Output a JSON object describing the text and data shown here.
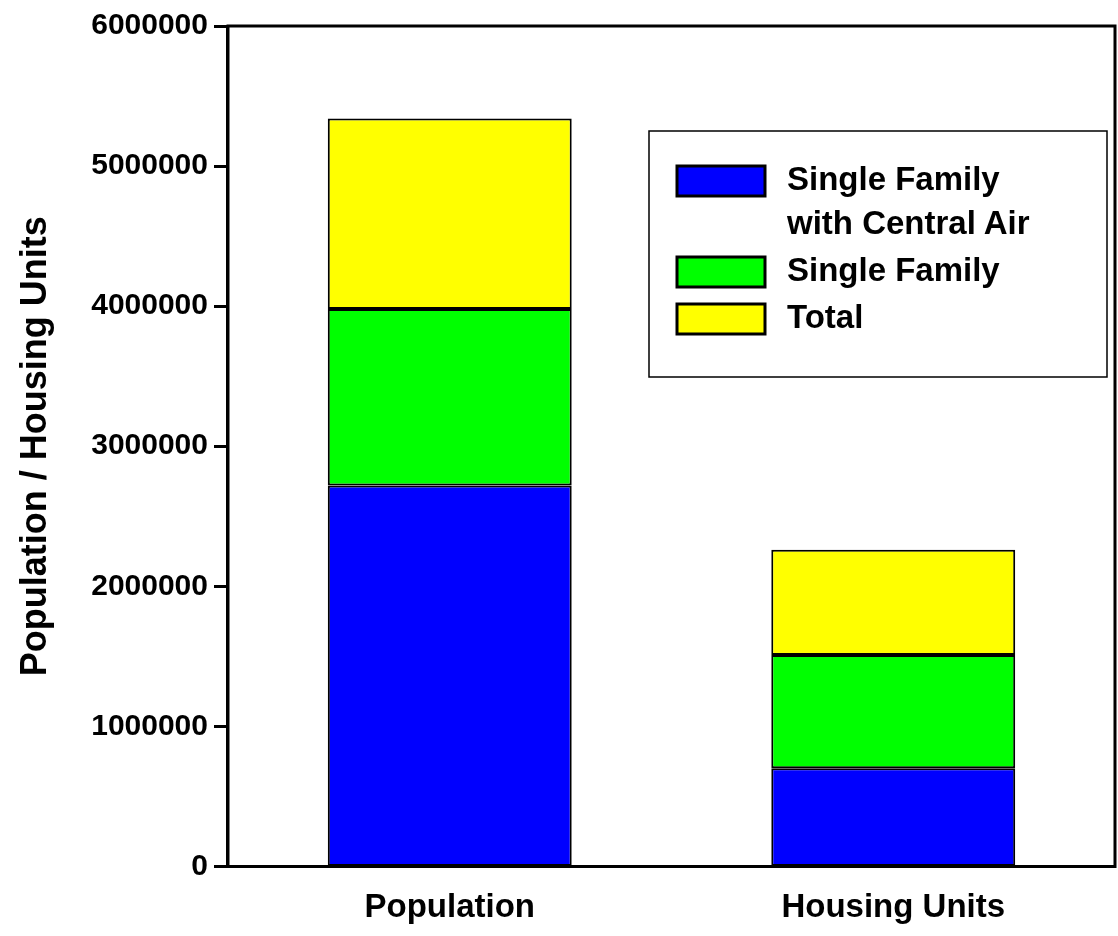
{
  "chart_data": {
    "type": "bar",
    "ylabel": "Population / Housing Units",
    "categories": [
      "Population",
      "Housing Units"
    ],
    "stacked": true,
    "series": [
      {
        "name": "Single Family with Central Air",
        "color": "#0000ff",
        "values": [
          2720000,
          700000
        ]
      },
      {
        "name": "Single Family",
        "color": "#00ff00",
        "values": [
          1260000,
          810000
        ]
      },
      {
        "name": "Total",
        "color": "#ffff00",
        "values": [
          1360000,
          750000
        ]
      }
    ],
    "ylim": [
      0,
      6000000
    ],
    "yticks": [
      0,
      1000000,
      2000000,
      3000000,
      4000000,
      5000000,
      6000000
    ],
    "grid": false,
    "legend": "top right"
  }
}
